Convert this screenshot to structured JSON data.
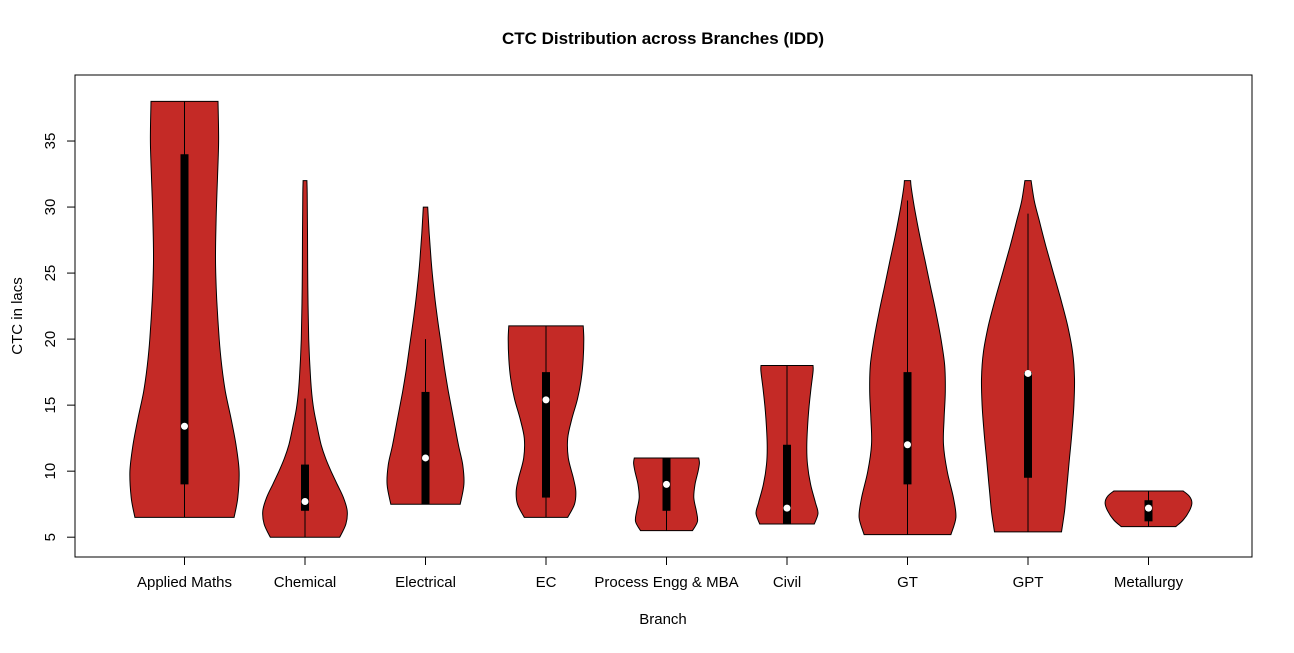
{
  "chart_data": {
    "type": "violin",
    "title": "CTC Distribution across Branches (IDD)",
    "xlabel": "Branch",
    "ylabel": "CTC in lacs",
    "ylim": [
      3.5,
      40
    ],
    "yticks": [
      5,
      10,
      15,
      20,
      25,
      30,
      35
    ],
    "grid": false,
    "legend": "none",
    "background_color": "#FFFFFF",
    "fill_color": "#C42A26",
    "outline_color": "#000000",
    "box_color": "#000000",
    "median_color": "#FFFFFF",
    "categories": [
      "Applied Maths",
      "Chemical",
      "Electrical",
      "EC",
      "Process Engg & MBA",
      "Civil",
      "GT",
      "GPT",
      "Metallurgy"
    ],
    "violins": [
      {
        "label": "Applied Maths",
        "min": 6.5,
        "max": 38,
        "q1": 9,
        "q3": 34,
        "median": 13.4,
        "whisker": [
          6.5,
          38
        ],
        "shape": [
          [
            6.5,
            0.8
          ],
          [
            8,
            0.86
          ],
          [
            10,
            0.88
          ],
          [
            12,
            0.83
          ],
          [
            14,
            0.75
          ],
          [
            16,
            0.66
          ],
          [
            18,
            0.6
          ],
          [
            20,
            0.56
          ],
          [
            23,
            0.52
          ],
          [
            26,
            0.5
          ],
          [
            29,
            0.51
          ],
          [
            32,
            0.53
          ],
          [
            35,
            0.55
          ],
          [
            38,
            0.54
          ]
        ]
      },
      {
        "label": "Chemical",
        "min": 5,
        "max": 32,
        "q1": 7,
        "q3": 10.5,
        "median": 7.7,
        "whisker": [
          5,
          15.5
        ],
        "shape": [
          [
            5,
            0.56
          ],
          [
            6,
            0.66
          ],
          [
            7,
            0.68
          ],
          [
            8,
            0.62
          ],
          [
            9,
            0.52
          ],
          [
            10,
            0.42
          ],
          [
            11,
            0.33
          ],
          [
            12,
            0.26
          ],
          [
            13.5,
            0.19
          ],
          [
            15,
            0.13
          ],
          [
            17,
            0.09
          ],
          [
            20,
            0.06
          ],
          [
            24,
            0.045
          ],
          [
            28,
            0.04
          ],
          [
            31,
            0.035
          ],
          [
            32,
            0.03
          ]
        ]
      },
      {
        "label": "Electrical",
        "min": 7.5,
        "max": 30,
        "q1": 7.5,
        "q3": 16,
        "median": 11,
        "whisker": [
          7.5,
          20
        ],
        "shape": [
          [
            7.5,
            0.56
          ],
          [
            9,
            0.62
          ],
          [
            10.5,
            0.6
          ],
          [
            12,
            0.53
          ],
          [
            14,
            0.45
          ],
          [
            16,
            0.37
          ],
          [
            18,
            0.3
          ],
          [
            20,
            0.24
          ],
          [
            22,
            0.18
          ],
          [
            24,
            0.13
          ],
          [
            26,
            0.09
          ],
          [
            28,
            0.06
          ],
          [
            30,
            0.035
          ]
        ]
      },
      {
        "label": "EC",
        "min": 6.5,
        "max": 21,
        "q1": 8,
        "q3": 17.5,
        "median": 15.4,
        "whisker": [
          6.5,
          21
        ],
        "shape": [
          [
            6.5,
            0.35
          ],
          [
            7.5,
            0.46
          ],
          [
            8.5,
            0.48
          ],
          [
            9.5,
            0.44
          ],
          [
            11,
            0.36
          ],
          [
            12.5,
            0.35
          ],
          [
            14,
            0.42
          ],
          [
            15.5,
            0.51
          ],
          [
            17,
            0.57
          ],
          [
            18.5,
            0.6
          ],
          [
            20,
            0.61
          ],
          [
            21,
            0.6
          ]
        ]
      },
      {
        "label": "Process Engg & MBA",
        "min": 5.5,
        "max": 11,
        "q1": 7,
        "q3": 11,
        "median": 9,
        "whisker": [
          5.5,
          11
        ],
        "shape": [
          [
            5.5,
            0.42
          ],
          [
            6.2,
            0.5
          ],
          [
            7,
            0.48
          ],
          [
            8,
            0.44
          ],
          [
            9,
            0.46
          ],
          [
            10,
            0.51
          ],
          [
            10.6,
            0.53
          ],
          [
            11,
            0.52
          ]
        ]
      },
      {
        "label": "Civil",
        "min": 6,
        "max": 18,
        "q1": 6,
        "q3": 12,
        "median": 7.2,
        "whisker": [
          6,
          18
        ],
        "shape": [
          [
            6,
            0.44
          ],
          [
            6.8,
            0.5
          ],
          [
            7.6,
            0.46
          ],
          [
            9,
            0.38
          ],
          [
            10.5,
            0.33
          ],
          [
            12,
            0.32
          ],
          [
            14,
            0.34
          ],
          [
            16,
            0.38
          ],
          [
            17.5,
            0.42
          ],
          [
            18,
            0.42
          ]
        ]
      },
      {
        "label": "GT",
        "min": 5.2,
        "max": 32,
        "q1": 9,
        "q3": 17.5,
        "median": 12,
        "whisker": [
          5.2,
          30.5
        ],
        "shape": [
          [
            5.2,
            0.7
          ],
          [
            6.5,
            0.78
          ],
          [
            8,
            0.74
          ],
          [
            10,
            0.64
          ],
          [
            12,
            0.58
          ],
          [
            14,
            0.59
          ],
          [
            16,
            0.61
          ],
          [
            18,
            0.6
          ],
          [
            20,
            0.54
          ],
          [
            22,
            0.46
          ],
          [
            24,
            0.37
          ],
          [
            26,
            0.28
          ],
          [
            28,
            0.19
          ],
          [
            30,
            0.11
          ],
          [
            31.5,
            0.06
          ],
          [
            32,
            0.05
          ]
        ]
      },
      {
        "label": "GPT",
        "min": 5.4,
        "max": 32,
        "q1": 9.5,
        "q3": 17.5,
        "median": 17.4,
        "whisker": [
          5.4,
          29.5
        ],
        "shape": [
          [
            5.4,
            0.54
          ],
          [
            7,
            0.59
          ],
          [
            9,
            0.63
          ],
          [
            11,
            0.67
          ],
          [
            13,
            0.71
          ],
          [
            15,
            0.74
          ],
          [
            17,
            0.75
          ],
          [
            19,
            0.72
          ],
          [
            21,
            0.64
          ],
          [
            23,
            0.53
          ],
          [
            25,
            0.41
          ],
          [
            27,
            0.29
          ],
          [
            29,
            0.18
          ],
          [
            30.5,
            0.1
          ],
          [
            32,
            0.05
          ]
        ]
      },
      {
        "label": "Metallurgy",
        "min": 5.8,
        "max": 8.5,
        "q1": 6.2,
        "q3": 7.8,
        "median": 7.2,
        "whisker": [
          5.8,
          8.5
        ],
        "shape": [
          [
            5.8,
            0.44
          ],
          [
            6.3,
            0.56
          ],
          [
            7,
            0.66
          ],
          [
            7.6,
            0.7
          ],
          [
            8.1,
            0.66
          ],
          [
            8.5,
            0.56
          ]
        ]
      }
    ]
  }
}
